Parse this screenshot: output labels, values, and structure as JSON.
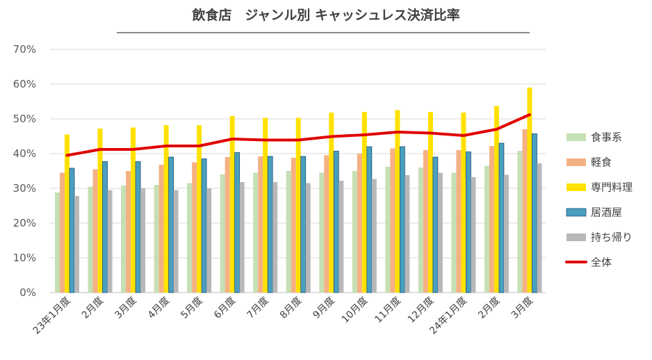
{
  "chart_data": {
    "type": "bar",
    "title": "飲食店　ジャンル別 キャッシュレス決済比率",
    "xlabel": "",
    "ylabel": "",
    "ylim": [
      0,
      70
    ],
    "yticks": [
      "0%",
      "10%",
      "20%",
      "30%",
      "40%",
      "50%",
      "60%",
      "70%"
    ],
    "grid": true,
    "legend_position": "right",
    "categories": [
      "23年1月度",
      "2月度",
      "3月度",
      "4月度",
      "5月度",
      "6月度",
      "7月度",
      "8月度",
      "9月度",
      "10月度",
      "11月度",
      "12月度",
      "24年1月度",
      "2月度",
      "3月度"
    ],
    "series": [
      {
        "name": "食事系",
        "type": "bar",
        "color": "#c5e0b4",
        "values": [
          28.8,
          30.5,
          30.8,
          31.0,
          31.5,
          34.0,
          34.5,
          35.0,
          34.5,
          35.0,
          36.2,
          36.0,
          34.5,
          36.5,
          40.8
        ]
      },
      {
        "name": "軽食",
        "type": "bar",
        "color": "#f4b183",
        "values": [
          34.5,
          35.5,
          35.0,
          36.8,
          37.5,
          39.0,
          39.2,
          38.8,
          39.5,
          40.0,
          41.5,
          41.0,
          41.0,
          42.2,
          47.0
        ]
      },
      {
        "name": "専門料理",
        "type": "bar",
        "color": "#ffe100",
        "values": [
          45.5,
          47.2,
          47.5,
          48.2,
          48.2,
          50.8,
          50.3,
          50.3,
          51.8,
          52.0,
          52.5,
          52.0,
          51.8,
          53.7,
          59.0
        ]
      },
      {
        "name": "居酒屋",
        "type": "bar",
        "color": "#4a9fbf",
        "values": [
          35.8,
          37.7,
          37.7,
          39.0,
          38.5,
          40.3,
          39.2,
          39.2,
          40.7,
          42.0,
          42.0,
          39.0,
          40.5,
          43.0,
          45.7
        ]
      },
      {
        "name": "持ち帰り",
        "type": "bar",
        "color": "#b8b8b8",
        "values": [
          27.8,
          29.5,
          30.0,
          29.5,
          30.0,
          31.8,
          31.8,
          31.5,
          32.2,
          32.7,
          33.8,
          34.5,
          33.2,
          33.9,
          37.2
        ]
      },
      {
        "name": "全体",
        "type": "line",
        "color": "#e00000",
        "values": [
          39.5,
          41.2,
          41.2,
          42.2,
          42.2,
          44.2,
          43.9,
          43.9,
          44.9,
          45.4,
          46.2,
          45.9,
          45.2,
          47.0,
          51.2
        ]
      }
    ]
  }
}
